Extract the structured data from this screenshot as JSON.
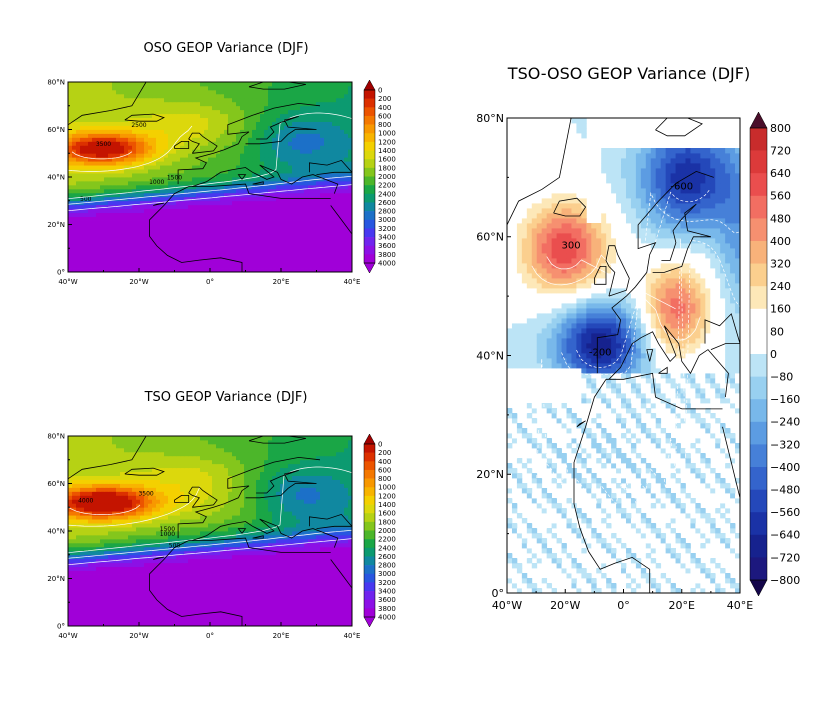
{
  "chart_data": [
    {
      "type": "heatmap",
      "title": "OSO GEOP Variance (DJF)",
      "x_ticks": [
        "40°W",
        "20°W",
        "0°",
        "20°E",
        "40°E"
      ],
      "y_ticks": [
        "0°",
        "20°N",
        "40°N",
        "60°N",
        "80°N"
      ],
      "xlim": [
        -40,
        40
      ],
      "ylim": [
        0,
        80
      ],
      "colorbar": [
        "0",
        "200",
        "400",
        "600",
        "800",
        "1000",
        "1200",
        "1400",
        "1600",
        "1800",
        "2000",
        "2200",
        "2400",
        "2600",
        "2800",
        "3000",
        "3200",
        "3400",
        "3600",
        "3800",
        "4000"
      ],
      "contour_labels": [
        "500",
        "1000",
        "1500",
        "2500",
        "3500"
      ],
      "max_center": [
        -30,
        52
      ],
      "max_value": 3900
    },
    {
      "type": "heatmap",
      "title": "TSO GEOP Variance (DJF)",
      "x_ticks": [
        "40°W",
        "20°W",
        "0°",
        "20°E",
        "40°E"
      ],
      "y_ticks": [
        "0°",
        "20°N",
        "40°N",
        "60°N",
        "80°N"
      ],
      "xlim": [
        -40,
        40
      ],
      "ylim": [
        0,
        80
      ],
      "colorbar": [
        "0",
        "200",
        "400",
        "600",
        "800",
        "1000",
        "1200",
        "1400",
        "1600",
        "1800",
        "2000",
        "2200",
        "2400",
        "2600",
        "2800",
        "3000",
        "3200",
        "3400",
        "3600",
        "3800",
        "4000"
      ],
      "contour_labels": [
        "4000",
        "3500",
        "1500",
        "1000",
        "500"
      ],
      "max_center": [
        -30,
        53
      ],
      "max_value": 4100
    },
    {
      "type": "heatmap",
      "title": "TSO-OSO GEOP Variance (DJF)",
      "x_ticks": [
        "40°W",
        "20°W",
        "0°",
        "20°E",
        "40°E"
      ],
      "y_ticks": [
        "0°",
        "20°N",
        "40°N",
        "60°N",
        "80°N"
      ],
      "xlim": [
        -40,
        40
      ],
      "ylim": [
        0,
        80
      ],
      "colorbar": [
        "800",
        "720",
        "640",
        "560",
        "480",
        "400",
        "320",
        "240",
        "160",
        "80",
        "0",
        "−80",
        "−160",
        "−240",
        "−320",
        "−400",
        "−480",
        "−560",
        "−640",
        "−720",
        "−800"
      ],
      "contour_labels": [
        "300",
        "-200",
        "-600"
      ],
      "positive_centers": [
        [
          -20,
          58
        ],
        [
          18,
          48
        ]
      ],
      "negative_centers": [
        [
          -8,
          42
        ],
        [
          20,
          70
        ]
      ]
    }
  ]
}
